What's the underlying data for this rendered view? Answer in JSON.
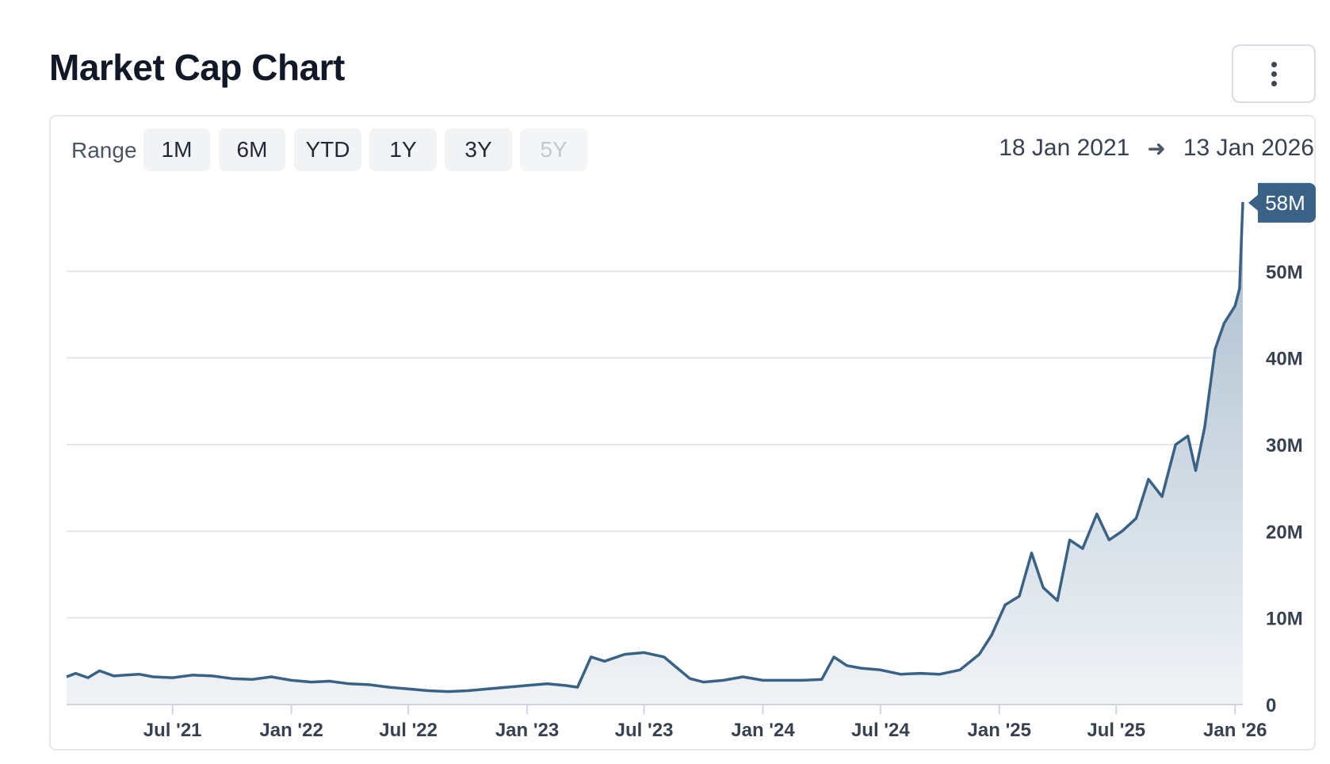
{
  "header": {
    "title": "Market Cap Chart",
    "menu_icon": "more-vertical-icon"
  },
  "range_selector": {
    "label": "Range",
    "options": [
      {
        "label": "1M",
        "disabled": false
      },
      {
        "label": "6M",
        "disabled": false
      },
      {
        "label": "YTD",
        "disabled": false
      },
      {
        "label": "1Y",
        "disabled": false
      },
      {
        "label": "3Y",
        "disabled": false
      },
      {
        "label": "5Y",
        "disabled": true
      }
    ]
  },
  "date_range": {
    "start": "18 Jan 2021",
    "end": "13 Jan 2026",
    "arrow_icon": "arrow-right-icon"
  },
  "colors": {
    "line": "#3a6186",
    "fill_top": "#a9bccd",
    "fill_bottom": "#f0f3f6",
    "grid": "#e3e6ea",
    "badge": "#3a6186"
  },
  "chart_data": {
    "type": "area",
    "title": "Market Cap Chart",
    "xlabel": "",
    "ylabel": "",
    "y_unit": "M",
    "ylim": [
      0,
      60
    ],
    "y_ticks": [
      0,
      10,
      20,
      30,
      40,
      50
    ],
    "y_tick_labels": [
      "0",
      "10M",
      "20M",
      "30M",
      "40M",
      "50M"
    ],
    "x_range": [
      "2021-01-18",
      "2026-01-13"
    ],
    "x_ticks": [
      "2021-07-01",
      "2022-01-01",
      "2022-07-01",
      "2023-01-01",
      "2023-07-01",
      "2024-01-01",
      "2024-07-01",
      "2025-01-01",
      "2025-07-01",
      "2026-01-01"
    ],
    "x_tick_labels": [
      "Jul '21",
      "Jan '22",
      "Jul '22",
      "Jan '23",
      "Jul '23",
      "Jan '24",
      "Jul '24",
      "Jan '25",
      "Jul '25",
      "Jan '26"
    ],
    "grid": true,
    "last_value_label": "58M",
    "series": [
      {
        "x": [
          "2021-01-18",
          "2021-02-01",
          "2021-02-20",
          "2021-03-10",
          "2021-04-01",
          "2021-04-20",
          "2021-05-10",
          "2021-06-01",
          "2021-07-01",
          "2021-08-01",
          "2021-09-01",
          "2021-10-01",
          "2021-11-01",
          "2021-12-01",
          "2022-01-01",
          "2022-02-01",
          "2022-03-01",
          "2022-04-01",
          "2022-05-01",
          "2022-06-01",
          "2022-07-01",
          "2022-08-01",
          "2022-09-01",
          "2022-10-01",
          "2022-11-01",
          "2022-12-01",
          "2023-01-01",
          "2023-02-01",
          "2023-03-01",
          "2023-03-20",
          "2023-04-10",
          "2023-05-01",
          "2023-06-01",
          "2023-07-01",
          "2023-08-01",
          "2023-08-20",
          "2023-09-10",
          "2023-10-01",
          "2023-11-01",
          "2023-12-01",
          "2024-01-01",
          "2024-02-01",
          "2024-03-01",
          "2024-04-01",
          "2024-04-20",
          "2024-05-10",
          "2024-06-01",
          "2024-07-01",
          "2024-08-01",
          "2024-09-01",
          "2024-10-01",
          "2024-11-01",
          "2024-12-01",
          "2024-12-20",
          "2025-01-10",
          "2025-02-01",
          "2025-02-20",
          "2025-03-10",
          "2025-04-01",
          "2025-04-20",
          "2025-05-10",
          "2025-06-01",
          "2025-06-20",
          "2025-07-10",
          "2025-08-01",
          "2025-08-20",
          "2025-09-10",
          "2025-10-01",
          "2025-10-20",
          "2025-11-01",
          "2025-11-15",
          "2025-12-01",
          "2025-12-15",
          "2026-01-01",
          "2026-01-08",
          "2026-01-13"
        ],
        "values": [
          3.2,
          3.6,
          3.1,
          3.9,
          3.3,
          3.4,
          3.5,
          3.2,
          3.1,
          3.4,
          3.3,
          3.0,
          2.9,
          3.2,
          2.8,
          2.6,
          2.7,
          2.4,
          2.3,
          2.0,
          1.8,
          1.6,
          1.5,
          1.6,
          1.8,
          2.0,
          2.2,
          2.4,
          2.2,
          2.0,
          5.5,
          5.0,
          5.8,
          6.0,
          5.5,
          4.3,
          3.0,
          2.6,
          2.8,
          3.2,
          2.8,
          2.8,
          2.8,
          2.9,
          5.5,
          4.5,
          4.2,
          4.0,
          3.5,
          3.6,
          3.5,
          4.0,
          5.8,
          8.0,
          11.5,
          12.5,
          17.5,
          13.5,
          12.0,
          19.0,
          18.0,
          22.0,
          19.0,
          20.0,
          21.5,
          26.0,
          24.0,
          30.0,
          31.0,
          27.0,
          32.0,
          41.0,
          44.0,
          46.0,
          48.0,
          58.0
        ]
      }
    ]
  }
}
